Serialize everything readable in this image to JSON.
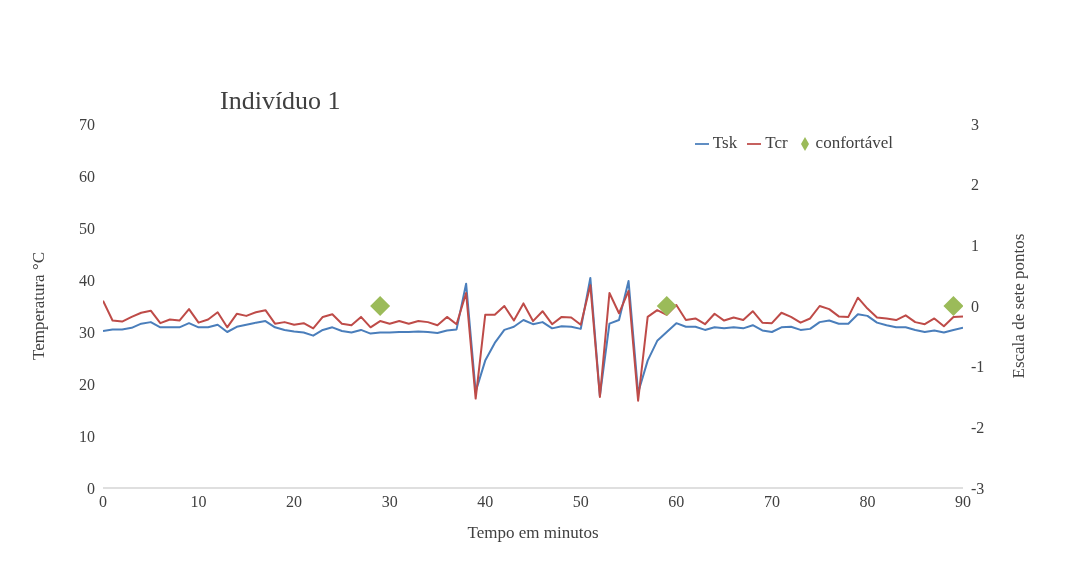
{
  "chart_data": {
    "type": "line",
    "title": "Indivíduo 1",
    "xlabel": "Tempo em minutos",
    "ylabel": "Temperatura °C",
    "y2label": "Escala de sete pontos",
    "x": [
      0,
      1,
      2,
      3,
      4,
      5,
      6,
      7,
      8,
      9,
      10,
      11,
      12,
      13,
      14,
      15,
      16,
      17,
      18,
      19,
      20,
      21,
      22,
      23,
      24,
      25,
      26,
      27,
      28,
      29,
      30,
      31,
      32,
      33,
      34,
      35,
      36,
      37,
      38,
      39,
      40,
      41,
      42,
      43,
      44,
      45,
      46,
      47,
      48,
      49,
      50,
      51,
      52,
      53,
      54,
      55,
      56,
      57,
      58,
      59,
      60,
      61,
      62,
      63,
      64,
      65,
      66,
      67,
      68,
      69,
      70,
      71,
      72,
      73,
      74,
      75,
      76,
      77,
      78,
      79,
      80,
      81,
      82,
      83,
      84,
      85,
      86,
      87,
      88,
      89,
      90
    ],
    "series": [
      {
        "name": "Tsk",
        "color": "#4a7ebb",
        "values": [
          30.2,
          30.5,
          30.5,
          30.8,
          31.6,
          31.9,
          30.9,
          30.9,
          30.9,
          31.7,
          30.9,
          30.9,
          31.4,
          30.0,
          31.0,
          31.4,
          31.8,
          32.1,
          30.9,
          30.4,
          30.1,
          29.9,
          29.3,
          30.4,
          30.9,
          30.2,
          29.9,
          30.4,
          29.7,
          29.9,
          29.9,
          30.0,
          30.0,
          30.1,
          30.0,
          29.8,
          30.3,
          30.5,
          39.3,
          18.5,
          24.5,
          27.9,
          30.4,
          31.0,
          32.3,
          31.5,
          31.9,
          30.7,
          31.1,
          31.0,
          30.6,
          40.4,
          17.7,
          31.6,
          32.3,
          39.8,
          18.3,
          24.5,
          28.3,
          30.0,
          31.7,
          31.0,
          31.0,
          30.4,
          30.9,
          30.7,
          30.9,
          30.7,
          31.3,
          30.3,
          30.0,
          30.9,
          31.0,
          30.4,
          30.6,
          31.9,
          32.2,
          31.6,
          31.6,
          33.4,
          33.1,
          31.8,
          31.3,
          30.9,
          30.9,
          30.4,
          30.0,
          30.3,
          29.9,
          30.4,
          30.8
        ]
      },
      {
        "name": "Tcr",
        "color": "#be4b48",
        "values": [
          36.0,
          32.2,
          32.0,
          32.9,
          33.7,
          34.1,
          31.7,
          32.4,
          32.2,
          34.4,
          31.8,
          32.4,
          33.8,
          30.9,
          33.5,
          33.1,
          33.8,
          34.2,
          31.6,
          31.9,
          31.4,
          31.7,
          30.7,
          32.9,
          33.4,
          31.6,
          31.3,
          32.9,
          30.9,
          32.1,
          31.6,
          32.1,
          31.6,
          32.1,
          31.9,
          31.3,
          32.9,
          31.5,
          37.5,
          17.2,
          33.3,
          33.3,
          35.0,
          32.2,
          35.5,
          32.1,
          34.0,
          31.5,
          32.9,
          32.8,
          31.4,
          39.0,
          17.5,
          37.5,
          33.6,
          37.9,
          16.8,
          32.9,
          34.2,
          33.3,
          35.2,
          32.3,
          32.6,
          31.5,
          33.5,
          32.2,
          32.8,
          32.3,
          34.0,
          31.8,
          31.7,
          33.7,
          32.9,
          31.8,
          32.6,
          35.0,
          34.4,
          33.0,
          32.9,
          36.6,
          34.5,
          32.8,
          32.6,
          32.3,
          33.2,
          31.9,
          31.5,
          32.6,
          31.1,
          32.9,
          33.0
        ]
      },
      {
        "name": "confortável",
        "type": "scatter",
        "axis": "y2",
        "color": "#9bbb59",
        "marker": "diamond",
        "x": [
          29,
          59,
          89
        ],
        "values": [
          0,
          0,
          0
        ]
      }
    ],
    "xlim": [
      0,
      90
    ],
    "xticks": [
      0,
      10,
      20,
      30,
      40,
      50,
      60,
      70,
      80,
      90
    ],
    "ylim": [
      0,
      70
    ],
    "yticks": [
      0,
      10,
      20,
      30,
      40,
      50,
      60,
      70
    ],
    "y2lim": [
      -3,
      3
    ],
    "y2ticks": [
      -3,
      -2,
      -1,
      0,
      1,
      2,
      3
    ],
    "grid": false,
    "legend": "top right",
    "marker": "none",
    "line_style": "solid"
  }
}
